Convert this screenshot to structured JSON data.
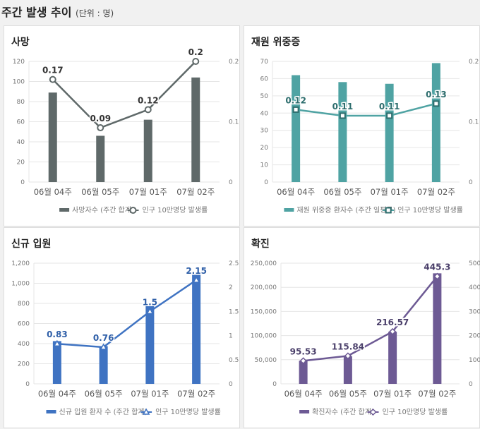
{
  "header": {
    "title": "주간 발생 추이",
    "unit": "(단위 : 명)"
  },
  "chart_data": [
    {
      "type": "bar+line",
      "title": "사망",
      "categories": [
        "06월 04주",
        "06월 05주",
        "07월 01주",
        "07월 02주"
      ],
      "series": [
        {
          "name": "사망자수 (주간 합계)",
          "type": "bar",
          "axis": "left",
          "values": [
            89,
            46,
            62,
            104
          ]
        },
        {
          "name": "인구 10만명당 발생률",
          "type": "line",
          "axis": "right",
          "marker": "circle",
          "values": [
            0.17,
            0.09,
            0.12,
            0.2
          ]
        }
      ],
      "ylim": [
        0,
        120
      ],
      "yticks": [
        "0",
        "20",
        "40",
        "60",
        "80",
        "100",
        "120"
      ],
      "y2lim": [
        0,
        0.2
      ],
      "y2ticks": [
        "0",
        "0.1",
        "0.2"
      ],
      "bar_color": "#5f6969",
      "line_color": "#5f6969",
      "grid": true,
      "legend": "bottom"
    },
    {
      "type": "bar+line",
      "title": "재원 위중증",
      "categories": [
        "06월 04주",
        "06월 05주",
        "07월 01주",
        "07월 02주"
      ],
      "series": [
        {
          "name": "재원 위중증 환자수 (주간 일평균)",
          "type": "bar",
          "axis": "left",
          "values": [
            62,
            58,
            57,
            69
          ]
        },
        {
          "name": "인구 10만명당 발생률",
          "type": "line",
          "axis": "right",
          "marker": "square",
          "values": [
            0.12,
            0.11,
            0.11,
            0.13
          ]
        }
      ],
      "ylim": [
        0,
        70
      ],
      "yticks": [
        "0",
        "10",
        "20",
        "30",
        "40",
        "50",
        "60",
        "70"
      ],
      "y2lim": [
        0,
        0.2
      ],
      "y2ticks": [
        "0",
        "0.1",
        "0.2"
      ],
      "bar_color": "#4fa3a3",
      "line_color": "#4fa3a3",
      "grid": true,
      "legend": "bottom"
    },
    {
      "type": "bar+line",
      "title": "신규 입원",
      "categories": [
        "06월 04주",
        "06월 05주",
        "07월 01주",
        "07월 02주"
      ],
      "series": [
        {
          "name": "신규 입원 환자 수 (주간 합계)",
          "type": "bar",
          "axis": "left",
          "values": [
            425,
            375,
            775,
            1090
          ]
        },
        {
          "name": "인구 10만명당 발생률",
          "type": "line",
          "axis": "right",
          "marker": "triangle",
          "values": [
            0.83,
            0.76,
            1.5,
            2.15
          ]
        }
      ],
      "ylim": [
        0,
        1200
      ],
      "yticks": [
        "0",
        "200",
        "400",
        "600",
        "800",
        "1,000",
        "1,200"
      ],
      "y2lim": [
        0,
        2.5
      ],
      "y2ticks": [
        "0",
        "0.5",
        "1",
        "1.5",
        "2",
        "2.5"
      ],
      "bar_color": "#3f73c2",
      "line_color": "#3f73c2",
      "grid": true,
      "legend": "bottom"
    },
    {
      "type": "bar+line",
      "title": "확진",
      "categories": [
        "06월 04주",
        "06월 05주",
        "07월 01주",
        "07월 02주"
      ],
      "series": [
        {
          "name": "확진자수 (주간 합계)",
          "type": "bar",
          "axis": "left",
          "values": [
            48000,
            57000,
            108000,
            229000
          ]
        },
        {
          "name": "인구 10만명당 발생률",
          "type": "line",
          "axis": "right",
          "marker": "diamond",
          "values": [
            95.53,
            115.84,
            216.57,
            445.3
          ]
        }
      ],
      "ylim": [
        0,
        250000
      ],
      "yticks": [
        "0",
        "50,000",
        "100,000",
        "150,000",
        "200,000",
        "250,000"
      ],
      "y2lim": [
        0,
        500
      ],
      "y2ticks": [
        "0",
        "100",
        "200",
        "300",
        "400",
        "500"
      ],
      "bar_color": "#6d5a94",
      "line_color": "#6d5a94",
      "grid": true,
      "legend": "bottom"
    }
  ]
}
